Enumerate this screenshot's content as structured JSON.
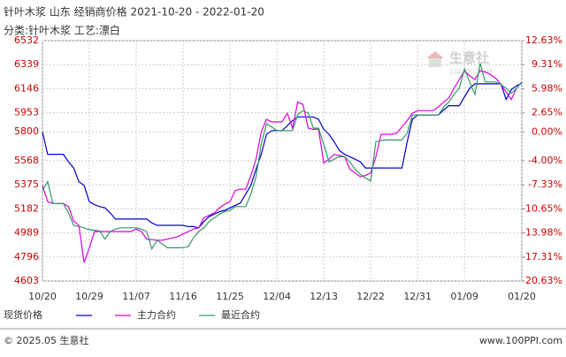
{
  "chart_data": {
    "type": "line",
    "title": "针叶木浆 山东 经销商价格 2021-10-20 - 2022-01-20",
    "subtitle": "分类:针叶木浆 工艺:漂白",
    "watermark": [
      "生意社",
      "100PPI.COM"
    ],
    "footer_left": "© 2025.05 生意社",
    "footer_right": "www.100PPI.com",
    "grid": true,
    "categories": [
      "10/20",
      null,
      null,
      null,
      null,
      null,
      null,
      null,
      null,
      "10/29",
      null,
      null,
      null,
      null,
      null,
      null,
      null,
      null,
      "11/07",
      null,
      null,
      null,
      null,
      null,
      null,
      null,
      null,
      "11/16",
      null,
      null,
      null,
      null,
      null,
      null,
      null,
      null,
      "11/25",
      null,
      null,
      null,
      null,
      null,
      null,
      null,
      null,
      "12/04",
      null,
      null,
      null,
      null,
      null,
      null,
      null,
      null,
      "12/13",
      null,
      null,
      null,
      null,
      null,
      null,
      null,
      null,
      "12/22",
      null,
      null,
      null,
      null,
      null,
      null,
      null,
      null,
      "12/31",
      null,
      null,
      null,
      null,
      null,
      null,
      null,
      null,
      "01/09",
      null,
      null,
      null,
      null,
      null,
      null,
      null,
      null,
      null,
      null,
      "01/20"
    ],
    "ylim": [
      4603,
      6532
    ],
    "yticks": [
      6532,
      6339,
      6146,
      5953,
      5800,
      5568,
      5375,
      5182,
      4989,
      4796,
      4603
    ],
    "y2lim": [
      -20.63,
      12.63
    ],
    "y2ticks": [
      {
        "value": 12.63,
        "label": "12.63%"
      },
      {
        "value": 9.31,
        "label": "9.31%"
      },
      {
        "value": 5.98,
        "label": "5.98%"
      },
      {
        "value": 2.65,
        "label": "2.65%"
      },
      {
        "value": 0,
        "label": "0.00%"
      },
      {
        "value": -4.0,
        "label": "-4.00%"
      },
      {
        "value": -7.33,
        "label": "-7.33%"
      },
      {
        "value": -10.65,
        "label": "-10.65%"
      },
      {
        "value": -13.98,
        "label": "-13.98%"
      },
      {
        "value": -17.31,
        "label": "-17.31%"
      },
      {
        "value": -20.63,
        "label": "-20.63%"
      }
    ],
    "series": [
      {
        "name": "现货价格",
        "color": "#0000cc",
        "values": [
          5800,
          5620,
          5620,
          5620,
          5620,
          5560,
          5510,
          5400,
          5370,
          5240,
          5215,
          5200,
          5190,
          5150,
          5100,
          5100,
          5100,
          5100,
          5100,
          5100,
          5100,
          5070,
          5050,
          5050,
          5050,
          5050,
          5050,
          5050,
          5040,
          5040,
          5030,
          5080,
          5120,
          5140,
          5160,
          5170,
          5190,
          5210,
          5230,
          5300,
          5370,
          5500,
          5620,
          5780,
          5810,
          5810,
          5810,
          5850,
          5890,
          5920,
          5920,
          5920,
          5920,
          5900,
          5820,
          5780,
          5720,
          5650,
          5620,
          5600,
          5580,
          5560,
          5510,
          5510,
          5510,
          5510,
          5510,
          5510,
          5510,
          5510,
          5720,
          5900,
          5935,
          5935,
          5935,
          5935,
          5935,
          5975,
          6010,
          6010,
          6010,
          6080,
          6150,
          6185,
          6185,
          6185,
          6185,
          6185,
          6185,
          6060,
          6140,
          6170,
          6190
        ]
      },
      {
        "name": "主力合约",
        "color": "#dd00dd",
        "values": [
          5370,
          5240,
          5225,
          5225,
          5225,
          5200,
          5085,
          5050,
          4750,
          4870,
          5000,
          5000,
          5000,
          5000,
          5000,
          5000,
          5000,
          5000,
          5020,
          5000,
          4940,
          4935,
          4930,
          4930,
          4940,
          4950,
          4960,
          4980,
          5000,
          5020,
          5030,
          5110,
          5130,
          5150,
          5190,
          5220,
          5240,
          5330,
          5340,
          5340,
          5450,
          5580,
          5800,
          5900,
          5880,
          5880,
          5880,
          5950,
          5830,
          6040,
          6020,
          5830,
          5820,
          5820,
          5550,
          5580,
          5620,
          5610,
          5600,
          5500,
          5470,
          5440,
          5450,
          5470,
          5600,
          5780,
          5780,
          5780,
          5790,
          5840,
          5890,
          5950,
          5970,
          5970,
          5970,
          5970,
          6000,
          6040,
          6070,
          6150,
          6220,
          6290,
          6250,
          6220,
          6290,
          6280,
          6260,
          6230,
          6180,
          6120,
          6060,
          6150,
          6200
        ]
      },
      {
        "name": "最近合约",
        "color": "#339966",
        "values": [
          5330,
          5400,
          5225,
          5225,
          5225,
          5150,
          5050,
          5040,
          5030,
          5015,
          5010,
          5005,
          4940,
          5000,
          5020,
          5030,
          5030,
          5030,
          5030,
          5020,
          5000,
          4860,
          4930,
          4900,
          4870,
          4870,
          4870,
          4870,
          4880,
          4950,
          5000,
          5030,
          5080,
          5110,
          5140,
          5160,
          5170,
          5200,
          5200,
          5200,
          5300,
          5440,
          5700,
          5865,
          5840,
          5810,
          5810,
          5810,
          5810,
          5940,
          5970,
          5950,
          5830,
          5830,
          5700,
          5560,
          5580,
          5600,
          5600,
          5560,
          5500,
          5460,
          5430,
          5405,
          5720,
          5730,
          5735,
          5735,
          5735,
          5735,
          5790,
          5935,
          5935,
          5935,
          5935,
          5935,
          5935,
          6000,
          6040,
          6100,
          6150,
          6305,
          6200,
          6100,
          6350,
          6200,
          6200,
          6200,
          6180,
          6150,
          6110,
          6150,
          6200
        ]
      }
    ]
  }
}
